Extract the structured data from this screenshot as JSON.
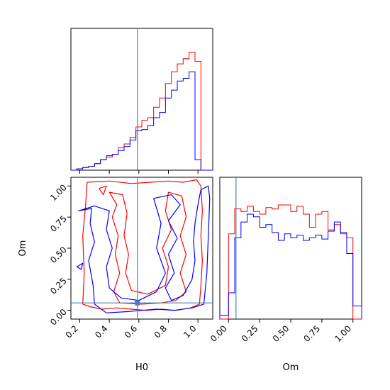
{
  "chart_data": {
    "type": "corner",
    "parameters": [
      "H0",
      "Om"
    ],
    "xlabels": {
      "h0": "H0",
      "om": "Om"
    },
    "ylabels": {
      "om": "Om"
    },
    "truth": {
      "H0": 0.59,
      "Om": 0.06
    },
    "colors": {
      "red": "#ff0000",
      "blue": "#0000ff",
      "truth": "#4682b4"
    },
    "ticks": {
      "h0": [
        "0.2",
        "0.4",
        "0.6",
        "0.8",
        "1.0"
      ],
      "om": [
        "0.00",
        "0.25",
        "0.50",
        "0.75",
        "1.00"
      ]
    },
    "panels": [
      {
        "type": "histogram",
        "parameter": "H0",
        "xlim": [
          0.14,
          1.1
        ],
        "ymax": 1.0,
        "series": [
          {
            "name": "red",
            "edges": [
              0.14,
              0.18,
              0.22,
              0.26,
              0.3,
              0.34,
              0.38,
              0.42,
              0.46,
              0.5,
              0.54,
              0.58,
              0.62,
              0.66,
              0.7,
              0.74,
              0.78,
              0.82,
              0.86,
              0.9,
              0.94,
              0.98,
              1.02,
              1.06,
              1.1
            ],
            "values": [
              0.0,
              0.01,
              0.02,
              0.03,
              0.05,
              0.08,
              0.1,
              0.12,
              0.17,
              0.2,
              0.25,
              0.33,
              0.38,
              0.4,
              0.48,
              0.55,
              0.66,
              0.75,
              0.81,
              0.85,
              0.9,
              0.83,
              0.0,
              0.0
            ]
          },
          {
            "name": "blue",
            "edges": [
              0.14,
              0.18,
              0.22,
              0.26,
              0.3,
              0.34,
              0.38,
              0.42,
              0.46,
              0.5,
              0.54,
              0.58,
              0.62,
              0.66,
              0.7,
              0.74,
              0.78,
              0.82,
              0.86,
              0.9,
              0.94,
              0.98,
              1.02,
              1.06,
              1.1
            ],
            "values": [
              0.0,
              0.01,
              0.02,
              0.03,
              0.05,
              0.08,
              0.11,
              0.12,
              0.15,
              0.18,
              0.23,
              0.3,
              0.31,
              0.34,
              0.4,
              0.44,
              0.55,
              0.61,
              0.68,
              0.7,
              0.75,
              0.08,
              0.0,
              0.0
            ]
          }
        ]
      },
      {
        "type": "contour",
        "x": "H0",
        "y": "Om",
        "xlim": [
          0.14,
          1.1
        ],
        "ylim": [
          -0.07,
          1.07
        ],
        "series": [
          {
            "name": "red",
            "contours": [
              [
                [
                  0.25,
                  1.03
                ],
                [
                  0.4,
                  1.04
                ],
                [
                  0.55,
                  1.02
                ],
                [
                  0.68,
                  1.03
                ],
                [
                  0.8,
                  1.04
                ],
                [
                  0.9,
                  1.03
                ],
                [
                  0.99,
                  1.05
                ],
                [
                  1.02,
                  1.0
                ],
                [
                  1.03,
                  0.8
                ],
                [
                  1.02,
                  0.6
                ],
                [
                  1.03,
                  0.4
                ],
                [
                  1.02,
                  0.2
                ],
                [
                  1.01,
                  0.05
                ],
                [
                  0.95,
                  0.02
                ],
                [
                  0.85,
                  0.0
                ],
                [
                  0.75,
                  0.01
                ],
                [
                  0.65,
                  0.0
                ],
                [
                  0.55,
                  0.01
                ],
                [
                  0.45,
                  0.02
                ],
                [
                  0.35,
                  0.01
                ],
                [
                  0.27,
                  0.03
                ],
                [
                  0.22,
                  0.05
                ],
                [
                  0.23,
                  0.3
                ],
                [
                  0.22,
                  0.6
                ],
                [
                  0.24,
                  0.85
                ],
                [
                  0.25,
                  1.03
                ]
              ],
              [
                [
                  0.4,
                  0.95
                ],
                [
                  0.45,
                  0.85
                ],
                [
                  0.42,
                  0.75
                ],
                [
                  0.46,
                  0.6
                ],
                [
                  0.44,
                  0.45
                ],
                [
                  0.47,
                  0.3
                ],
                [
                  0.43,
                  0.15
                ],
                [
                  0.47,
                  0.06
                ],
                [
                  0.62,
                  0.05
                ],
                [
                  0.75,
                  0.06
                ],
                [
                  0.85,
                  0.08
                ],
                [
                  0.92,
                  0.15
                ],
                [
                  0.88,
                  0.3
                ],
                [
                  0.92,
                  0.45
                ],
                [
                  0.88,
                  0.6
                ],
                [
                  0.92,
                  0.75
                ],
                [
                  0.89,
                  0.92
                ],
                [
                  0.8,
                  0.95
                ],
                [
                  0.78,
                  0.8
                ],
                [
                  0.82,
                  0.65
                ],
                [
                  0.76,
                  0.5
                ],
                [
                  0.8,
                  0.35
                ],
                [
                  0.78,
                  0.2
                ],
                [
                  0.66,
                  0.13
                ],
                [
                  0.55,
                  0.16
                ],
                [
                  0.51,
                  0.3
                ],
                [
                  0.53,
                  0.45
                ],
                [
                  0.5,
                  0.6
                ],
                [
                  0.52,
                  0.78
                ],
                [
                  0.49,
                  0.93
                ],
                [
                  0.4,
                  0.95
                ]
              ],
              [
                [
                  0.33,
                  0.98
                ],
                [
                  0.38,
                  1.0
                ],
                [
                  0.36,
                  0.93
                ],
                [
                  0.33,
                  0.98
                ]
              ]
            ]
          },
          {
            "name": "blue",
            "contours": [
              [
                [
                  0.19,
                  0.8
                ],
                [
                  0.28,
                  0.82
                ],
                [
                  0.27,
                  0.7
                ],
                [
                  0.3,
                  0.55
                ],
                [
                  0.26,
                  0.4
                ],
                [
                  0.29,
                  0.2
                ],
                [
                  0.3,
                  0.05
                ],
                [
                  0.38,
                  -0.02
                ],
                [
                  0.52,
                  -0.01
                ],
                [
                  0.62,
                  0.0
                ],
                [
                  0.72,
                  0.01
                ],
                [
                  0.84,
                  0.0
                ],
                [
                  0.96,
                  0.02
                ],
                [
                  1.04,
                  0.05
                ],
                [
                  1.06,
                  0.3
                ],
                [
                  1.07,
                  0.6
                ],
                [
                  1.08,
                  0.9
                ],
                [
                  1.07,
                  1.0
                ],
                [
                  1.02,
                  0.97
                ],
                [
                  1.0,
                  0.85
                ],
                [
                  0.98,
                  0.7
                ],
                [
                  0.97,
                  0.55
                ],
                [
                  0.98,
                  0.4
                ],
                [
                  0.96,
                  0.25
                ],
                [
                  0.9,
                  0.12
                ],
                [
                  0.82,
                  0.08
                ],
                [
                  0.78,
                  0.18
                ],
                [
                  0.84,
                  0.3
                ],
                [
                  0.8,
                  0.45
                ],
                [
                  0.86,
                  0.58
                ],
                [
                  0.8,
                  0.72
                ],
                [
                  0.88,
                  0.85
                ],
                [
                  0.82,
                  0.93
                ],
                [
                  0.7,
                  0.9
                ],
                [
                  0.75,
                  0.7
                ],
                [
                  0.72,
                  0.5
                ],
                [
                  0.78,
                  0.3
                ],
                [
                  0.72,
                  0.15
                ],
                [
                  0.6,
                  0.08
                ],
                [
                  0.48,
                  0.1
                ],
                [
                  0.4,
                  0.18
                ],
                [
                  0.38,
                  0.35
                ],
                [
                  0.42,
                  0.5
                ],
                [
                  0.38,
                  0.65
                ],
                [
                  0.4,
                  0.8
                ],
                [
                  0.3,
                  0.84
                ],
                [
                  0.19,
                  0.8
                ]
              ],
              [
                [
                  0.18,
                  0.35
                ],
                [
                  0.22,
                  0.38
                ],
                [
                  0.21,
                  0.33
                ],
                [
                  0.18,
                  0.35
                ]
              ]
            ]
          }
        ]
      },
      {
        "type": "histogram",
        "parameter": "Om",
        "xlim": [
          -0.07,
          1.07
        ],
        "ymax": 1.0,
        "series": [
          {
            "name": "red",
            "edges": [
              -0.07,
              0.0,
              0.05,
              0.1,
              0.15,
              0.2,
              0.25,
              0.3,
              0.35,
              0.4,
              0.45,
              0.5,
              0.55,
              0.6,
              0.65,
              0.7,
              0.75,
              0.8,
              0.85,
              0.9,
              0.95,
              1.0,
              1.07
            ],
            "values": [
              0.0,
              0.65,
              0.84,
              0.82,
              0.86,
              0.82,
              0.8,
              0.85,
              0.84,
              0.87,
              0.87,
              0.82,
              0.86,
              0.8,
              0.7,
              0.8,
              0.82,
              0.68,
              0.72,
              0.65,
              0.62,
              0.0
            ]
          },
          {
            "name": "blue",
            "edges": [
              -0.07,
              0.0,
              0.05,
              0.1,
              0.15,
              0.2,
              0.25,
              0.3,
              0.35,
              0.4,
              0.45,
              0.5,
              0.55,
              0.6,
              0.65,
              0.7,
              0.75,
              0.8,
              0.85,
              0.9,
              0.95,
              1.0,
              1.07
            ],
            "values": [
              0.03,
              0.2,
              0.62,
              0.74,
              0.8,
              0.78,
              0.7,
              0.72,
              0.66,
              0.6,
              0.65,
              0.62,
              0.64,
              0.6,
              0.62,
              0.64,
              0.61,
              0.67,
              0.74,
              0.66,
              0.5,
              0.1
            ]
          }
        ]
      }
    ]
  }
}
